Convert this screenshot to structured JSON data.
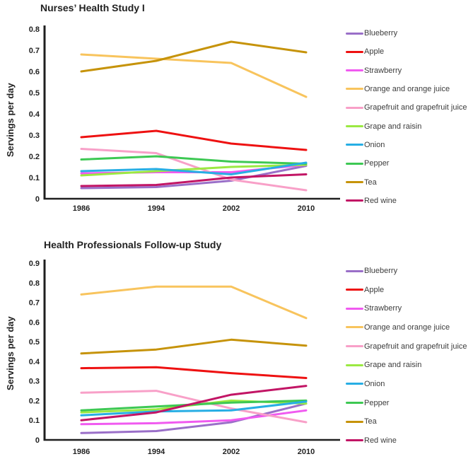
{
  "figure": {
    "background": "#ffffff",
    "axis_color": "#1f1f1f",
    "text_color": "#222222"
  },
  "chart_data": [
    {
      "type": "line",
      "title": "Nurses’ Health Study I",
      "ylabel": "Servings per day",
      "xlabel": "",
      "ylim": [
        0,
        0.8
      ],
      "ytick_step": 0.1,
      "yticks": [
        0,
        0.1,
        0.2,
        0.3,
        0.4,
        0.5,
        0.6,
        0.7,
        0.8
      ],
      "x": [
        "1986",
        "1994",
        "2002",
        "2010"
      ],
      "grid": false,
      "legend_position": "right",
      "series": [
        {
          "name": "Blueberry",
          "color": "#9A6FC8",
          "values": [
            0.05,
            0.055,
            0.085,
            0.155
          ]
        },
        {
          "name": "Apple",
          "color": "#EE1111",
          "values": [
            0.29,
            0.32,
            0.26,
            0.23
          ]
        },
        {
          "name": "Strawberry",
          "color": "#F05AF0",
          "values": [
            0.12,
            0.125,
            0.125,
            0.16
          ]
        },
        {
          "name": "Orange and orange juice",
          "color": "#F8C45D",
          "values": [
            0.68,
            0.66,
            0.64,
            0.48
          ]
        },
        {
          "name": "Grapefruit and grapefruit juice",
          "color": "#F8A0C8",
          "values": [
            0.235,
            0.215,
            0.09,
            0.04
          ]
        },
        {
          "name": "Grape and raisin",
          "color": "#9BE942",
          "values": [
            0.11,
            0.13,
            0.15,
            0.16
          ]
        },
        {
          "name": "Onion",
          "color": "#27AEE4",
          "values": [
            0.13,
            0.14,
            0.115,
            0.17
          ]
        },
        {
          "name": "Pepper",
          "color": "#3DC853",
          "values": [
            0.185,
            0.2,
            0.175,
            0.165
          ]
        },
        {
          "name": "Tea",
          "color": "#C6930A",
          "values": [
            0.6,
            0.65,
            0.74,
            0.69
          ]
        },
        {
          "name": "Red wine",
          "color": "#C21565",
          "values": [
            0.06,
            0.065,
            0.1,
            0.115
          ]
        }
      ]
    },
    {
      "type": "line",
      "title": "Health Professionals Follow-up Study",
      "ylabel": "Servings per day",
      "xlabel": "",
      "ylim": [
        0,
        0.9
      ],
      "ytick_step": 0.1,
      "yticks": [
        0,
        0.1,
        0.2,
        0.3,
        0.4,
        0.5,
        0.6,
        0.7,
        0.8,
        0.9
      ],
      "x": [
        "1986",
        "1994",
        "2002",
        "2010"
      ],
      "grid": false,
      "legend_position": "right",
      "series": [
        {
          "name": "Blueberry",
          "color": "#9A6FC8",
          "values": [
            0.035,
            0.045,
            0.09,
            0.185
          ]
        },
        {
          "name": "Apple",
          "color": "#EE1111",
          "values": [
            0.365,
            0.37,
            0.34,
            0.315
          ]
        },
        {
          "name": "Strawberry",
          "color": "#F05AF0",
          "values": [
            0.08,
            0.085,
            0.1,
            0.15
          ]
        },
        {
          "name": "Orange and orange juice",
          "color": "#F8C45D",
          "values": [
            0.74,
            0.78,
            0.78,
            0.62
          ]
        },
        {
          "name": "Grapefruit and grapefruit juice",
          "color": "#F8A0C8",
          "values": [
            0.24,
            0.25,
            0.16,
            0.09
          ]
        },
        {
          "name": "Grape and raisin",
          "color": "#9BE942",
          "values": [
            0.14,
            0.155,
            0.2,
            0.185
          ]
        },
        {
          "name": "Onion",
          "color": "#27AEE4",
          "values": [
            0.125,
            0.145,
            0.15,
            0.195
          ]
        },
        {
          "name": "Pepper",
          "color": "#3DC853",
          "values": [
            0.15,
            0.17,
            0.19,
            0.2
          ]
        },
        {
          "name": "Tea",
          "color": "#C6930A",
          "values": [
            0.44,
            0.46,
            0.51,
            0.48
          ]
        },
        {
          "name": "Red wine",
          "color": "#C21565",
          "values": [
            0.1,
            0.14,
            0.23,
            0.275
          ]
        }
      ]
    }
  ]
}
